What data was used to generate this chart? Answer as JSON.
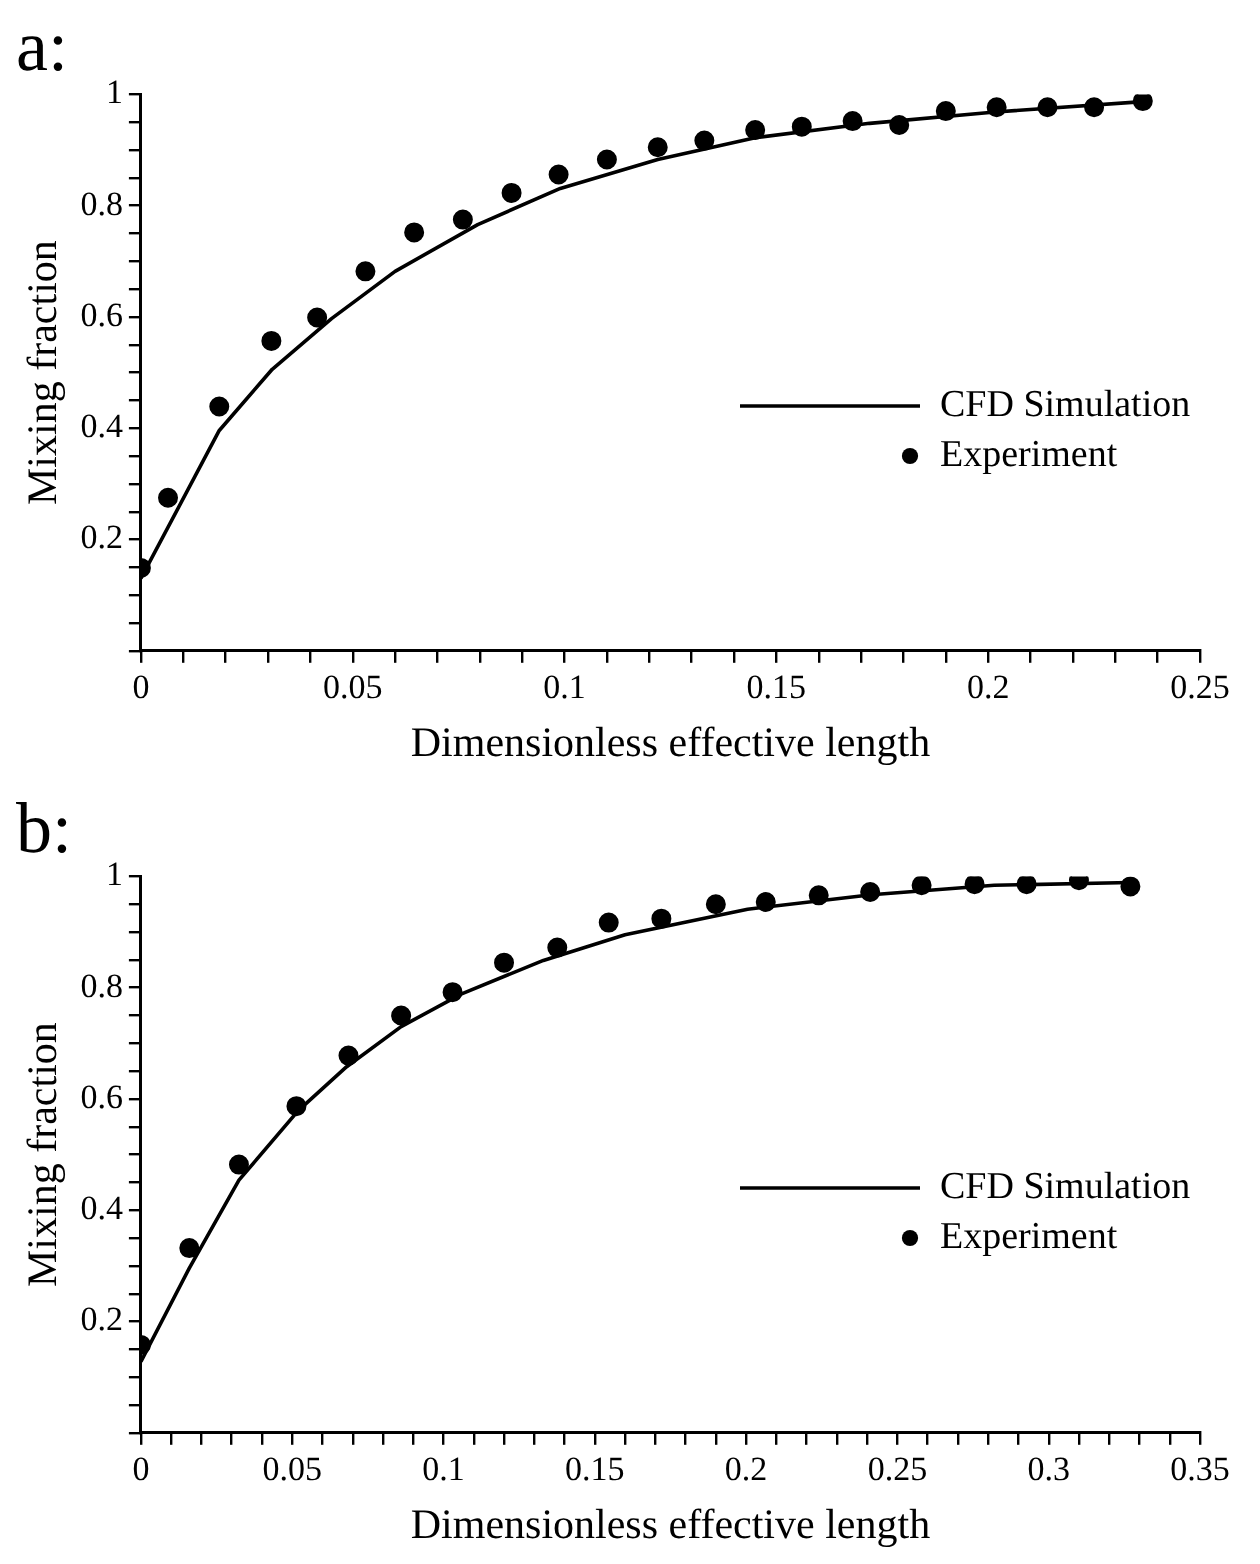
{
  "chart_data": [
    {
      "type": "scatter",
      "title": "a:",
      "xlabel": "Dimensionless effective length",
      "ylabel": "Mixing fraction",
      "legend": "right",
      "grid": false,
      "xlim": [
        0,
        0.25
      ],
      "ylim": [
        0,
        1
      ],
      "xticks": [
        0,
        {
          "value": 0.01,
          "label": null
        },
        {
          "value": 0.02,
          "label": null
        },
        {
          "value": 0.03,
          "label": null
        },
        {
          "value": 0.04,
          "label": null
        },
        0.05,
        {
          "value": 0.06,
          "label": null
        },
        {
          "value": 0.07,
          "label": null
        },
        {
          "value": 0.08,
          "label": null
        },
        {
          "value": 0.09,
          "label": null
        },
        0.1,
        {
          "value": 0.11,
          "label": null
        },
        {
          "value": 0.12,
          "label": null
        },
        {
          "value": 0.13,
          "label": null
        },
        {
          "value": 0.14,
          "label": null
        },
        0.15,
        {
          "value": 0.16,
          "label": null
        },
        {
          "value": 0.17,
          "label": null
        },
        {
          "value": 0.18,
          "label": null
        },
        {
          "value": 0.19,
          "label": null
        },
        0.2,
        {
          "value": 0.21,
          "label": null
        },
        {
          "value": 0.22,
          "label": null
        },
        {
          "value": 0.23,
          "label": null
        },
        {
          "value": 0.24,
          "label": null
        },
        0.25
      ],
      "yticks": [
        {
          "value": 0,
          "label": null
        },
        {
          "value": 0.05,
          "label": null
        },
        {
          "value": 0.1,
          "label": null
        },
        {
          "value": 0.15,
          "label": null
        },
        0.2,
        {
          "value": 0.25,
          "label": null
        },
        {
          "value": 0.3,
          "label": null
        },
        {
          "value": 0.35,
          "label": null
        },
        0.4,
        {
          "value": 0.45,
          "label": null
        },
        {
          "value": 0.5,
          "label": null
        },
        {
          "value": 0.55,
          "label": null
        },
        0.6,
        {
          "value": 0.65,
          "label": null
        },
        {
          "value": 0.7,
          "label": null
        },
        {
          "value": 0.75,
          "label": null
        },
        0.8,
        {
          "value": 0.85,
          "label": null
        },
        {
          "value": 0.9,
          "label": null
        },
        {
          "value": 0.95,
          "label": null
        },
        1
      ],
      "series": [
        {
          "name": "CFD Simulation",
          "type": "line",
          "color": "#000000",
          "marker": "none",
          "line_style": "solid",
          "x": [
            0,
            0.0185,
            0.031,
            0.045,
            0.06,
            0.0795,
            0.099,
            0.122,
            0.145,
            0.172,
            0.201,
            0.2365
          ],
          "values": [
            0.13,
            0.396,
            0.506,
            0.597,
            0.682,
            0.766,
            0.831,
            0.883,
            0.922,
            0.948,
            0.968,
            0.987
          ]
        },
        {
          "name": "Experiment",
          "color": "#000000",
          "marker": "circle",
          "x": [
            0,
            0.0064,
            0.0185,
            0.0308,
            0.0416,
            0.053,
            0.0645,
            0.076,
            0.0875,
            0.0986,
            0.11,
            0.122,
            0.133,
            0.145,
            0.156,
            0.168,
            0.179,
            0.19,
            0.202,
            0.214,
            0.225,
            0.2365
          ],
          "values": [
            0.149,
            0.275,
            0.439,
            0.557,
            0.599,
            0.682,
            0.752,
            0.775,
            0.823,
            0.856,
            0.883,
            0.905,
            0.917,
            0.936,
            0.942,
            0.952,
            0.945,
            0.97,
            0.977,
            0.977,
            0.977,
            0.988
          ]
        }
      ]
    },
    {
      "type": "scatter",
      "title": "b:",
      "xlabel": "Dimensionless effective length",
      "ylabel": "Mixing fraction",
      "legend": "right",
      "grid": false,
      "xlim": [
        0,
        0.35
      ],
      "ylim": [
        0,
        1
      ],
      "xticks": [
        0,
        {
          "value": 0.01,
          "label": null
        },
        {
          "value": 0.02,
          "label": null
        },
        {
          "value": 0.03,
          "label": null
        },
        {
          "value": 0.04,
          "label": null
        },
        0.05,
        {
          "value": 0.06,
          "label": null
        },
        {
          "value": 0.07,
          "label": null
        },
        {
          "value": 0.08,
          "label": null
        },
        {
          "value": 0.09,
          "label": null
        },
        0.1,
        {
          "value": 0.11,
          "label": null
        },
        {
          "value": 0.12,
          "label": null
        },
        {
          "value": 0.13,
          "label": null
        },
        {
          "value": 0.14,
          "label": null
        },
        0.15,
        {
          "value": 0.16,
          "label": null
        },
        {
          "value": 0.17,
          "label": null
        },
        {
          "value": 0.18,
          "label": null
        },
        {
          "value": 0.19,
          "label": null
        },
        0.2,
        {
          "value": 0.21,
          "label": null
        },
        {
          "value": 0.22,
          "label": null
        },
        {
          "value": 0.23,
          "label": null
        },
        {
          "value": 0.24,
          "label": null
        },
        0.25,
        {
          "value": 0.26,
          "label": null
        },
        {
          "value": 0.27,
          "label": null
        },
        {
          "value": 0.28,
          "label": null
        },
        {
          "value": 0.29,
          "label": null
        },
        0.3,
        {
          "value": 0.31,
          "label": null
        },
        {
          "value": 0.32,
          "label": null
        },
        {
          "value": 0.33,
          "label": null
        },
        {
          "value": 0.34,
          "label": null
        },
        0.35
      ],
      "yticks": [
        {
          "value": 0,
          "label": null
        },
        {
          "value": 0.05,
          "label": null
        },
        {
          "value": 0.1,
          "label": null
        },
        {
          "value": 0.15,
          "label": null
        },
        0.2,
        {
          "value": 0.25,
          "label": null
        },
        {
          "value": 0.3,
          "label": null
        },
        {
          "value": 0.35,
          "label": null
        },
        0.4,
        {
          "value": 0.45,
          "label": null
        },
        {
          "value": 0.5,
          "label": null
        },
        {
          "value": 0.55,
          "label": null
        },
        0.6,
        {
          "value": 0.65,
          "label": null
        },
        {
          "value": 0.7,
          "label": null
        },
        {
          "value": 0.75,
          "label": null
        },
        0.8,
        {
          "value": 0.85,
          "label": null
        },
        {
          "value": 0.9,
          "label": null
        },
        {
          "value": 0.95,
          "label": null
        },
        1
      ],
      "series": [
        {
          "name": "CFD Simulation",
          "type": "line",
          "color": "#000000",
          "marker": "none",
          "line_style": "solid",
          "x": [
            0,
            0.016,
            0.0324,
            0.052,
            0.068,
            0.086,
            0.106,
            0.133,
            0.16,
            0.2005,
            0.2414,
            0.282,
            0.327
          ],
          "values": [
            0.128,
            0.296,
            0.454,
            0.579,
            0.658,
            0.73,
            0.789,
            0.849,
            0.895,
            0.941,
            0.967,
            0.984,
            0.989
          ]
        },
        {
          "name": "Experiment",
          "color": "#000000",
          "marker": "circle",
          "x": [
            0,
            0.016,
            0.0324,
            0.0514,
            0.0686,
            0.086,
            0.103,
            0.12,
            0.1376,
            0.1546,
            0.172,
            0.19,
            0.2065,
            0.224,
            0.241,
            0.258,
            0.2755,
            0.2927,
            0.31,
            0.327
          ],
          "values": [
            0.158,
            0.332,
            0.482,
            0.587,
            0.678,
            0.75,
            0.792,
            0.845,
            0.872,
            0.917,
            0.924,
            0.95,
            0.954,
            0.966,
            0.972,
            0.984,
            0.986,
            0.986,
            0.993,
            0.982
          ]
        }
      ]
    }
  ]
}
